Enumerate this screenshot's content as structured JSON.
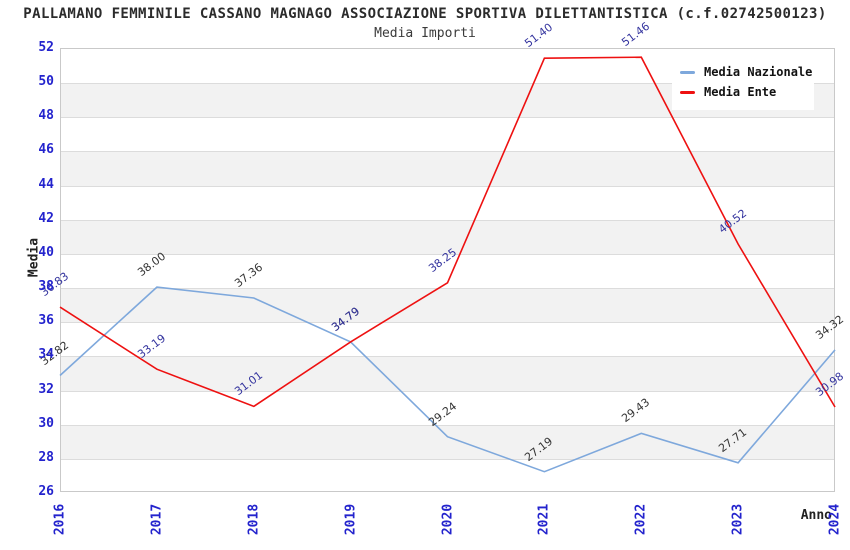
{
  "header": {
    "title": "PALLAMANO FEMMINILE CASSANO MAGNAGO ASSOCIAZIONE SPORTIVA DILETTANTISTICA (c.f.02742500123)",
    "subtitle": "Media Importi"
  },
  "axes": {
    "y_title": "Media",
    "x_title": "Anno",
    "y_ticks": [
      52,
      50,
      48,
      46,
      44,
      42,
      40,
      38,
      36,
      34,
      32,
      30,
      28,
      26
    ]
  },
  "legend": {
    "items": [
      {
        "label": "Media Nazionale",
        "color": "#7EA8DC"
      },
      {
        "label": "Media Ente",
        "color": "#EE1111"
      }
    ]
  },
  "colors": {
    "tick_label": "#2323cd",
    "band_gray": "#f2f2f2",
    "gridline": "#dcdcdc",
    "plot_border": "#c9c9c9",
    "nazionale_line": "#7EA8DC",
    "ente_line": "#EE1111",
    "nazionale_data_label": "#333333",
    "ente_data_label": "#33339e"
  },
  "chart_data": {
    "type": "line",
    "title": "Media Importi",
    "xlabel": "Anno",
    "ylabel": "Media",
    "ylim": [
      26,
      52
    ],
    "y_tick_step": 2,
    "grid": true,
    "legend_position": "top-right",
    "categories": [
      "2016",
      "2017",
      "2018",
      "2019",
      "2020",
      "2021",
      "2022",
      "2023",
      "2024"
    ],
    "series": [
      {
        "name": "Media Nazionale",
        "color": "#7EA8DC",
        "label_color": "#333333",
        "values": [
          32.82,
          38.0,
          37.36,
          34.79,
          29.24,
          27.19,
          29.43,
          27.71,
          34.32
        ],
        "labels": [
          "32.82",
          "38.00",
          "37.36",
          "34.79",
          "29.24",
          "27.19",
          "29.43",
          "27.71",
          "34.32"
        ]
      },
      {
        "name": "Media Ente",
        "color": "#EE1111",
        "label_color": "#33339e",
        "values": [
          36.83,
          33.19,
          31.01,
          34.79,
          38.25,
          51.4,
          51.46,
          40.52,
          30.98
        ],
        "labels": [
          "36.83",
          "33.19",
          "31.01",
          "34.79",
          "38.25",
          "51.40",
          "51.46",
          "40.52",
          "30.98"
        ]
      }
    ]
  }
}
